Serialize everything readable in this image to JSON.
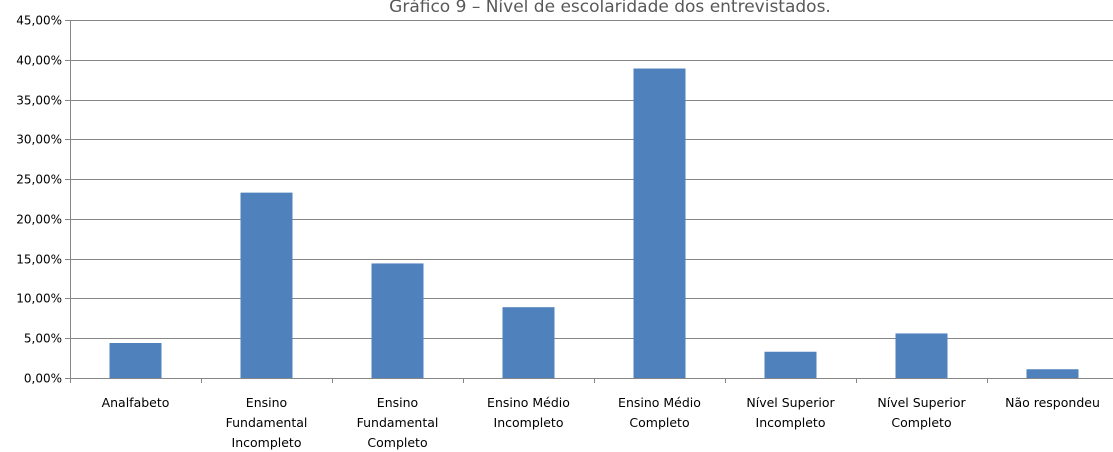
{
  "chart_data": {
    "type": "bar",
    "title": "Gráfico 9 – Nível de escolaridade dos entrevistados.",
    "xlabel": "",
    "ylabel": "",
    "ylim": [
      0,
      45
    ],
    "y_tick_labels": [
      "0,00%",
      "5,00%",
      "10,00%",
      "15,00%",
      "20,00%",
      "25,00%",
      "30,00%",
      "35,00%",
      "40,00%",
      "45,00%"
    ],
    "categories": [
      [
        "Analfabeto"
      ],
      [
        "Ensino",
        "Fundamental",
        "Incompleto"
      ],
      [
        "Ensino",
        "Fundamental",
        "Completo"
      ],
      [
        "Ensino Médio",
        "Incompleto"
      ],
      [
        "Ensino Médio",
        "Completo"
      ],
      [
        "Nível Superior",
        "Incompleto"
      ],
      [
        "Nível Superior",
        "Completo"
      ],
      [
        "Não respondeu"
      ]
    ],
    "values": [
      4.4,
      23.3,
      14.4,
      8.9,
      38.9,
      3.3,
      5.6,
      1.1
    ],
    "grid": true,
    "bar_color": "#4F81BD",
    "grid_color": "#868686"
  }
}
